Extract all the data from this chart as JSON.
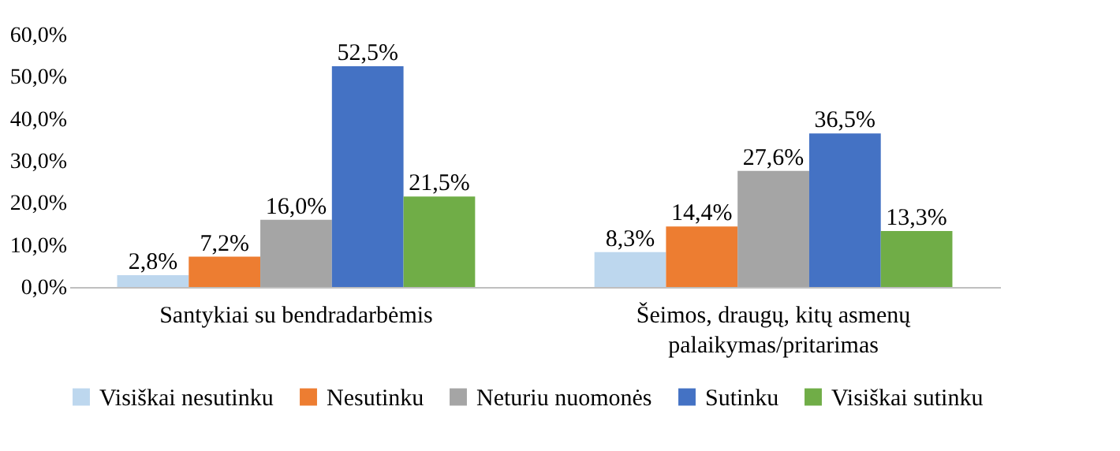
{
  "chart_data": {
    "type": "bar",
    "categories": [
      "Santykiai su bendradarbėmis",
      "Šeimos, draugų, kitų asmenų palaikymas/pritarimas"
    ],
    "series": [
      {
        "name": "Visiškai nesutinku",
        "color": "#bdd7ee",
        "values": [
          2.8,
          8.3
        ],
        "value_labels": [
          "2,8%",
          "8,3%"
        ]
      },
      {
        "name": "Nesutinku",
        "color": "#ed7d31",
        "values": [
          7.2,
          14.4
        ],
        "value_labels": [
          "7,2%",
          "14,4%"
        ]
      },
      {
        "name": "Neturiu nuomonės",
        "color": "#a5a5a5",
        "values": [
          16.0,
          27.6
        ],
        "value_labels": [
          "16,0%",
          "27,6%"
        ]
      },
      {
        "name": "Sutinku",
        "color": "#4472c4",
        "values": [
          52.5,
          36.5
        ],
        "value_labels": [
          "52,5%",
          "36,5%"
        ]
      },
      {
        "name": "Visiškai sutinku",
        "color": "#70ad47",
        "values": [
          21.5,
          13.3
        ],
        "value_labels": [
          "21,5%",
          "13,3%"
        ]
      }
    ],
    "ylim": [
      0,
      60
    ],
    "yticks": [
      {
        "value": 0,
        "label": "0,0%"
      },
      {
        "value": 10,
        "label": "10,0%"
      },
      {
        "value": 20,
        "label": "20,0%"
      },
      {
        "value": 30,
        "label": "30,0%"
      },
      {
        "value": 40,
        "label": "40,0%"
      },
      {
        "value": 50,
        "label": "50,0%"
      },
      {
        "value": 60,
        "label": "60,0%"
      }
    ],
    "legend": "bottom"
  }
}
